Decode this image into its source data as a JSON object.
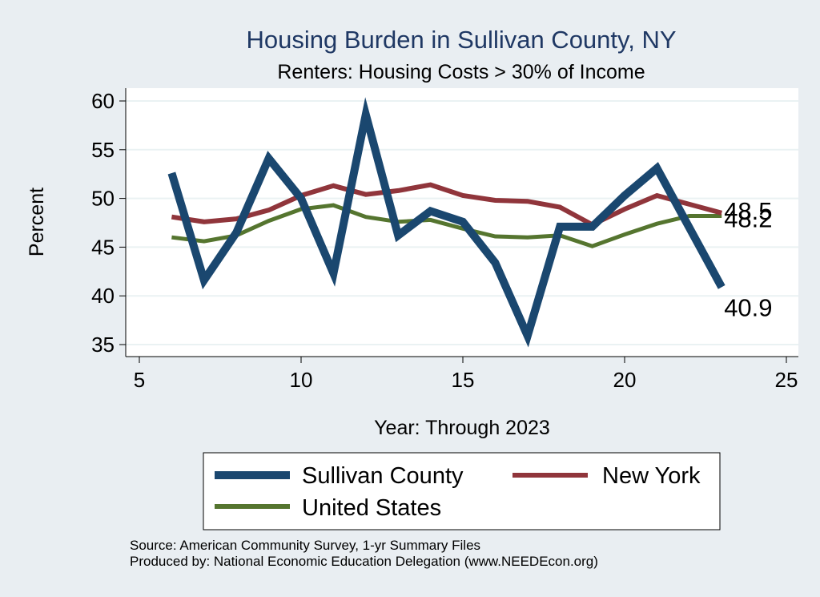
{
  "chart_data": {
    "type": "line",
    "title": "Housing Burden in Sullivan County, NY",
    "subtitle": "Renters: Housing Costs > 30% of Income",
    "xlabel": "Year: Through 2023",
    "ylabel": "Percent",
    "xlim": [
      5,
      25
    ],
    "ylim": [
      34,
      61
    ],
    "xticks": [
      5,
      10,
      15,
      20,
      25
    ],
    "yticks": [
      35,
      40,
      45,
      50,
      55,
      60
    ],
    "grid": true,
    "legend_position": "bottom",
    "x": [
      6,
      7,
      8,
      9,
      10,
      11,
      12,
      13,
      14,
      15,
      16,
      17,
      18,
      19,
      20,
      21,
      22,
      23
    ],
    "series": [
      {
        "name": "Sullivan County",
        "color": "#1a476f",
        "values": [
          52.6,
          41.6,
          46.5,
          54.1,
          50.0,
          42.3,
          58.6,
          46.2,
          48.7,
          47.6,
          43.4,
          35.9,
          47.1,
          47.1,
          50.3,
          53.1,
          47.0,
          40.9
        ],
        "end_label": "40.9"
      },
      {
        "name": "New York",
        "color": "#90353b",
        "values": [
          48.1,
          47.6,
          47.9,
          48.8,
          50.3,
          51.3,
          50.4,
          50.8,
          51.4,
          50.3,
          49.8,
          49.7,
          49.1,
          47.3,
          48.9,
          50.3,
          49.4,
          48.5
        ],
        "end_label": "48.5"
      },
      {
        "name": "United States",
        "color": "#55752f",
        "values": [
          46.0,
          45.6,
          46.2,
          47.7,
          48.9,
          49.3,
          48.1,
          47.6,
          47.8,
          46.9,
          46.1,
          46.0,
          46.2,
          45.1,
          46.3,
          47.4,
          48.2,
          48.2
        ],
        "end_label": "48.2"
      }
    ],
    "notes": [
      "Source: American Community Survey, 1-yr Summary Files",
      "Produced by: National Economic Education Delegation (www.NEEDEcon.org)"
    ]
  }
}
